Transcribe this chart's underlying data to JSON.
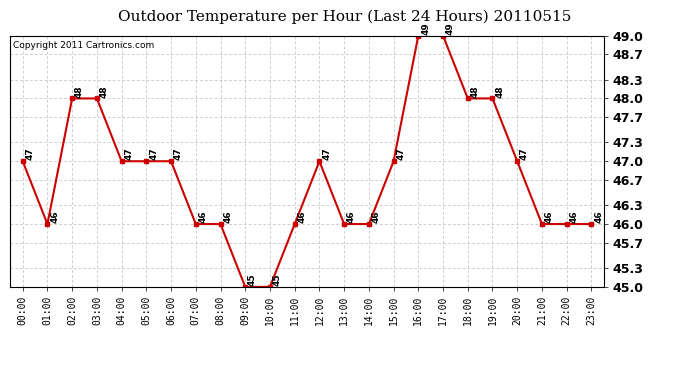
{
  "title": "Outdoor Temperature per Hour (Last 24 Hours) 20110515",
  "copyright": "Copyright 2011 Cartronics.com",
  "hours": [
    "00:00",
    "01:00",
    "02:00",
    "03:00",
    "04:00",
    "05:00",
    "06:00",
    "07:00",
    "08:00",
    "09:00",
    "10:00",
    "11:00",
    "12:00",
    "13:00",
    "14:00",
    "15:00",
    "16:00",
    "17:00",
    "18:00",
    "19:00",
    "20:00",
    "21:00",
    "22:00",
    "23:00"
  ],
  "temps": [
    47,
    46,
    48,
    48,
    47,
    47,
    47,
    46,
    46,
    45,
    45,
    46,
    47,
    46,
    46,
    47,
    49,
    49,
    48,
    48,
    47,
    46,
    46,
    46
  ],
  "ylim_min": 45.0,
  "ylim_max": 49.0,
  "yticks": [
    45.0,
    45.3,
    45.7,
    46.0,
    46.3,
    46.7,
    47.0,
    47.3,
    47.7,
    48.0,
    48.3,
    48.7,
    49.0
  ],
  "line_color": "#cc0000",
  "marker_color": "#cc0000",
  "bg_color": "#ffffff",
  "plot_bg_color": "#ffffff",
  "grid_color": "#bbbbbb",
  "title_fontsize": 11,
  "label_fontsize": 7,
  "annot_fontsize": 6.5,
  "copyright_fontsize": 6.5,
  "ytick_fontsize": 9
}
